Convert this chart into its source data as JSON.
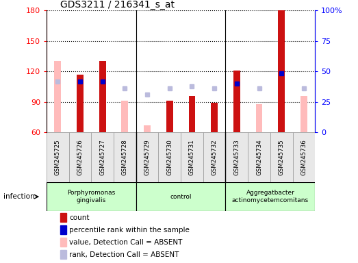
{
  "title": "GDS3211 / 216341_s_at",
  "samples": [
    "GSM245725",
    "GSM245726",
    "GSM245727",
    "GSM245728",
    "GSM245729",
    "GSM245730",
    "GSM245731",
    "GSM245732",
    "GSM245733",
    "GSM245734",
    "GSM245735",
    "GSM245736"
  ],
  "ylim_left": [
    60,
    180
  ],
  "ylim_right": [
    0,
    100
  ],
  "yticks_left": [
    60,
    90,
    120,
    150,
    180
  ],
  "yticks_right": [
    0,
    25,
    50,
    75,
    100
  ],
  "yticklabels_right": [
    "0",
    "25",
    "50",
    "75",
    "100%"
  ],
  "count_values": [
    null,
    117,
    130,
    null,
    null,
    91,
    96,
    89,
    121,
    null,
    180,
    null
  ],
  "rank_values": [
    null,
    110,
    110,
    null,
    null,
    null,
    null,
    null,
    108,
    null,
    118,
    null
  ],
  "absent_value_values": [
    130,
    null,
    null,
    91,
    67,
    null,
    null,
    null,
    null,
    88,
    null,
    96
  ],
  "absent_rank_values": [
    110,
    null,
    null,
    103,
    97,
    103,
    105,
    103,
    null,
    103,
    null,
    103
  ],
  "count_color": "#cc1111",
  "rank_color": "#0000cc",
  "absent_value_color": "#ffbbbb",
  "absent_rank_color": "#bbbbdd",
  "groups": [
    {
      "label": "Porphyromonas\ngingivalis",
      "start": 0,
      "end": 3,
      "color": "#ccffcc"
    },
    {
      "label": "control",
      "start": 4,
      "end": 7,
      "color": "#ccffcc"
    },
    {
      "label": "Aggregatbacter\nactinomycetemcomitans",
      "start": 8,
      "end": 11,
      "color": "#ccffcc"
    }
  ],
  "group_separators": [
    4,
    8
  ],
  "infection_label": "infection",
  "bar_width": 0.3,
  "marker_size": 5,
  "legend_items": [
    {
      "color": "#cc1111",
      "label": "count"
    },
    {
      "color": "#0000cc",
      "label": "percentile rank within the sample"
    },
    {
      "color": "#ffbbbb",
      "label": "value, Detection Call = ABSENT"
    },
    {
      "color": "#bbbbdd",
      "label": "rank, Detection Call = ABSENT"
    }
  ]
}
